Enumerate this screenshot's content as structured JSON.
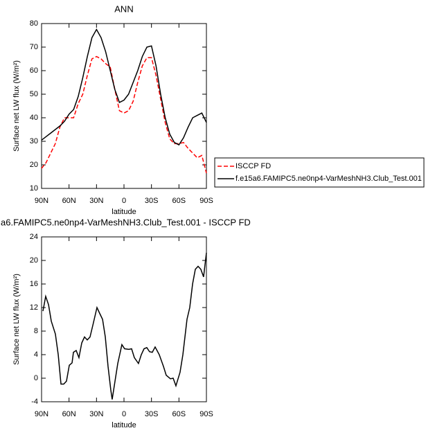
{
  "chart_data": [
    {
      "type": "line",
      "title": "ANN",
      "xlabel": "latitude",
      "ylabel": "Surface net LW flux (W/m²)",
      "x": [
        90,
        85,
        80,
        75,
        70,
        65,
        60,
        55,
        50,
        45,
        40,
        35,
        30,
        25,
        20,
        15,
        10,
        5,
        0,
        -5,
        -10,
        -15,
        -20,
        -25,
        -30,
        -35,
        -40,
        -45,
        -50,
        -55,
        -60,
        -65,
        -70,
        -75,
        -80,
        -85,
        -90
      ],
      "series": [
        {
          "name": "ISCCP FD",
          "color": "#ff0000",
          "line_style": "dashed",
          "values": [
            18.5,
            21,
            25,
            29,
            36,
            40,
            40,
            40,
            46,
            50,
            58,
            65,
            66,
            65,
            63,
            61.5,
            52,
            43,
            42,
            43,
            47,
            55,
            62,
            65.5,
            65.5,
            58,
            48,
            38,
            31,
            29,
            29,
            29.5,
            27,
            25,
            23,
            24,
            16.5
          ]
        },
        {
          "name": "f.e15a6.FAMIPC5.ne0np4-VarMeshNH3.Club_Test.001",
          "color": "#000000",
          "line_style": "solid",
          "values": [
            30.5,
            32,
            33.5,
            35,
            36.5,
            38.5,
            41.5,
            43.5,
            49,
            57,
            66,
            74,
            77.5,
            74,
            68,
            60,
            52,
            46.5,
            47.5,
            50,
            55,
            60,
            66,
            70,
            70.5,
            62,
            50,
            40,
            33,
            29.5,
            28.5,
            31.5,
            36,
            40,
            41,
            42,
            38
          ]
        }
      ],
      "xlim": [
        90,
        -90
      ],
      "xticks": [
        {
          "value": 90,
          "label": "90N"
        },
        {
          "value": 60,
          "label": "60N"
        },
        {
          "value": 30,
          "label": "30N"
        },
        0,
        {
          "value": -30,
          "label": "30S"
        },
        {
          "value": -60,
          "label": "60S"
        },
        {
          "value": -90,
          "label": "90S"
        }
      ],
      "ylim": [
        10,
        80
      ],
      "yticks": [
        10,
        20,
        30,
        40,
        50,
        60,
        70,
        80
      ],
      "legend": "right"
    },
    {
      "type": "line",
      "title": "a6.FAMIPC5.ne0np4-VarMeshNH3.Club_Test.001 - ISCCP FD",
      "xlabel": "latitude",
      "ylabel": "Surface net LW flux (W/m²)",
      "x": [
        88.5,
        85.5,
        82.4,
        79.4,
        74.9,
        71.8,
        68.8,
        65.8,
        62.8,
        59.7,
        56.7,
        55.2,
        52.2,
        49.2,
        46.1,
        43.1,
        40.1,
        37.1,
        34,
        29.5,
        26.5,
        23.4,
        20.4,
        17.4,
        14.4,
        12.9,
        9.8,
        6.8,
        2.3,
        -0.7,
        -5.3,
        -8.3,
        -11.3,
        -15.8,
        -18.9,
        -21.9,
        -24.9,
        -27.9,
        -30.9,
        -34,
        -38.5,
        -43.1,
        -46.1,
        -50.7,
        -53.7,
        -56.7,
        -61.2,
        -64.3,
        -68.8,
        -71.8,
        -74.9,
        -77.9,
        -80.9,
        -83.9,
        -86.9,
        -90
      ],
      "values": [
        11.4,
        13.9,
        12.5,
        9.7,
        7.5,
        4,
        -1,
        -1,
        -0.5,
        2.2,
        2.6,
        4.4,
        4.7,
        3.5,
        6,
        7,
        6.5,
        7,
        9,
        12,
        11,
        10,
        7,
        2,
        -2,
        -3.6,
        -0.5,
        2.5,
        5.7,
        5,
        4.9,
        5,
        3.5,
        2.5,
        4,
        5,
        5.2,
        4.5,
        4.4,
        5.3,
        4,
        2,
        0.5,
        -0.1,
        0,
        -1.3,
        1,
        4,
        10,
        12,
        16,
        18.5,
        19,
        18.5,
        17.2,
        21.3
      ],
      "color": "#000000",
      "xlim": [
        90,
        -90
      ],
      "xticks": [
        {
          "value": 90,
          "label": "90N"
        },
        {
          "value": 60,
          "label": "60N"
        },
        {
          "value": 30,
          "label": "30N"
        },
        0,
        {
          "value": -30,
          "label": "30S"
        },
        {
          "value": -60,
          "label": "60S"
        },
        {
          "value": -90,
          "label": "90S"
        }
      ],
      "ylim": [
        -4,
        24
      ],
      "yticks": [
        -4,
        0,
        4,
        8,
        12,
        16,
        20,
        24
      ]
    }
  ]
}
